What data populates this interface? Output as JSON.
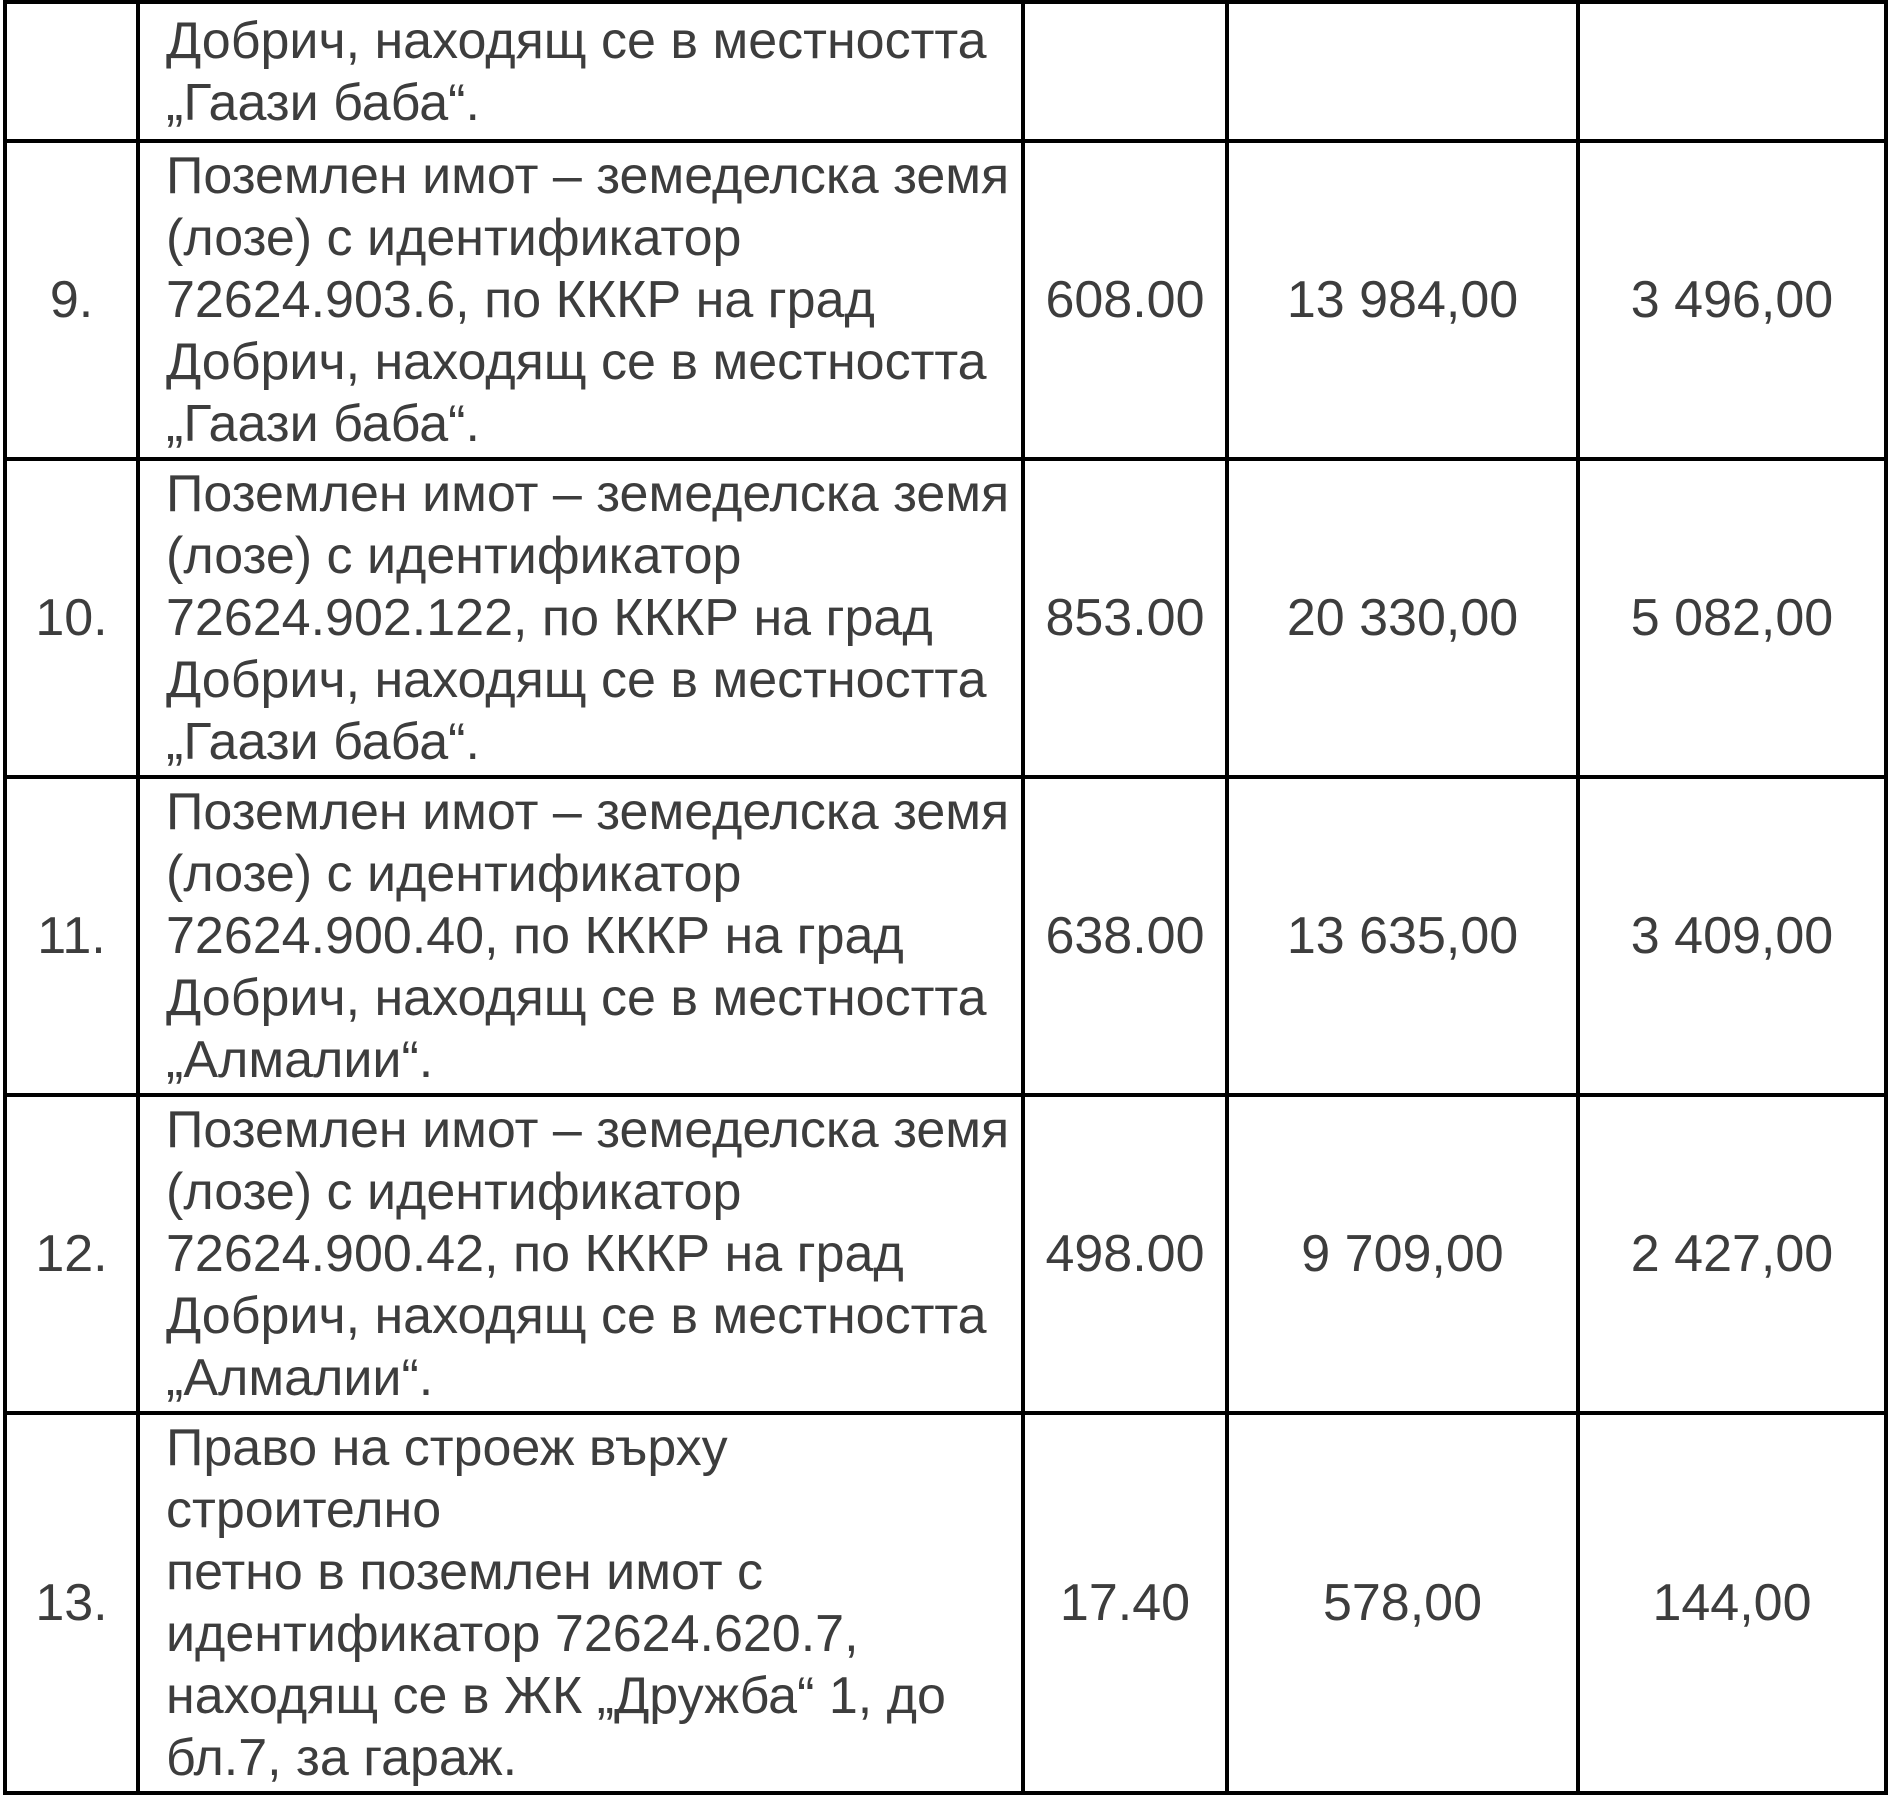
{
  "table": {
    "text_color": "#3d3d3d",
    "border_color": "#000000",
    "rows": [
      {
        "num": "",
        "description": "Добрич, находящ се в местността\n„Гаази баба“.",
        "area": "",
        "amount_1": "",
        "amount_2": ""
      },
      {
        "num": "9.",
        "description": "Поземлен имот – земеделска земя\n(лозе) с идентификатор\n72624.903.6, по КККР на град\nДобрич, находящ се в местността\n„Гаази баба“.",
        "area": "608.00",
        "amount_1": "13 984,00",
        "amount_2": "3 496,00"
      },
      {
        "num": "10.",
        "description": "Поземлен имот – земеделска земя\n(лозе) с идентификатор\n72624.902.122, по КККР на град\nДобрич, находящ се в местността\n„Гаази баба“.",
        "area": "853.00",
        "amount_1": "20 330,00",
        "amount_2": "5 082,00"
      },
      {
        "num": "11.",
        "description": "Поземлен имот – земеделска земя\n(лозе) с идентификатор\n72624.900.40, по КККР на град\nДобрич, находящ се в местността\n„Алмалии“.",
        "area": "638.00",
        "amount_1": "13 635,00",
        "amount_2": "3 409,00"
      },
      {
        "num": "12.",
        "description": "Поземлен имот – земеделска земя\n(лозе) с идентификатор\n72624.900.42, по КККР на град\nДобрич, находящ се в местността\n„Алмалии“.",
        "area": "498.00",
        "amount_1": "9 709,00",
        "amount_2": "2 427,00"
      },
      {
        "num": "13.",
        "description": "Право на строеж върху строително\nпетно в поземлен имот с\nидентификатор 72624.620.7,\nнаходящ се в ЖК „Дружба“ 1, до\nбл.7, за гараж.",
        "area": "17.40",
        "amount_1": "578,00",
        "amount_2": "144,00"
      }
    ]
  }
}
